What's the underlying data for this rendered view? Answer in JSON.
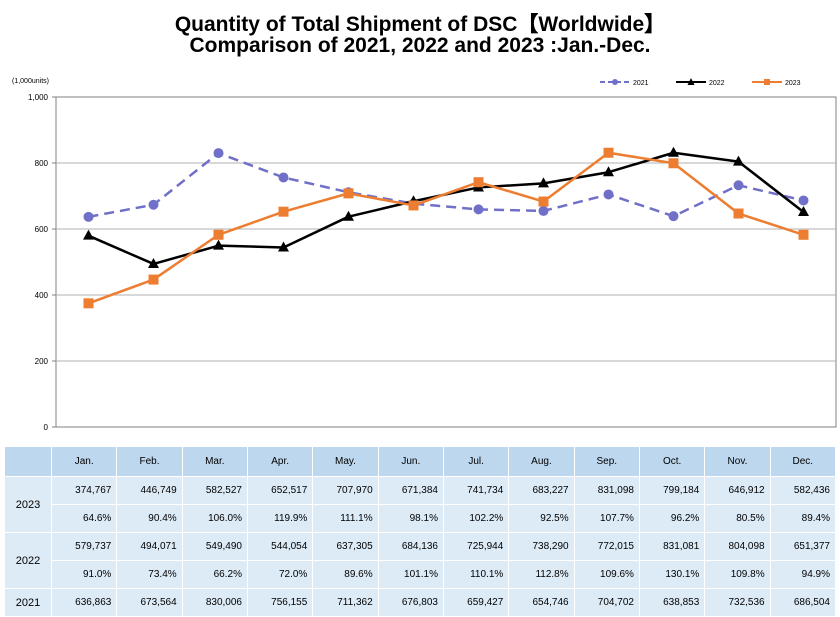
{
  "title_line1": "Quantity of Total Shipment of DSC【Worldwide】",
  "title_line2": "Comparison of 2021, 2022 and 2023 :Jan.-Dec.",
  "chart_data": {
    "type": "line",
    "unit_label": "(1,000units)",
    "categories": [
      "Jan.",
      "Feb.",
      "Mar.",
      "Apr.",
      "May.",
      "Jun.",
      "Jul.",
      "Aug.",
      "Sep.",
      "Oct.",
      "Nov.",
      "Dec."
    ],
    "ylim": [
      0,
      1000
    ],
    "yticks": [
      "0",
      "200",
      "400",
      "600",
      "800",
      "1,000"
    ],
    "ytick_values": [
      0,
      200,
      400,
      600,
      800,
      1000
    ],
    "grid": true,
    "legend_position": "top-right",
    "series": [
      {
        "name": "2021",
        "color": "#7070c8",
        "style": "dashed",
        "marker": "circle",
        "values": [
          636.863,
          673.564,
          830.006,
          756.155,
          711.362,
          676.803,
          659.427,
          654.746,
          704.702,
          638.853,
          732.536,
          686.504
        ]
      },
      {
        "name": "2022",
        "color": "#000000",
        "style": "solid",
        "marker": "triangle",
        "values": [
          579.737,
          494.071,
          549.49,
          544.054,
          637.305,
          684.136,
          725.944,
          738.29,
          772.015,
          831.081,
          804.098,
          651.377
        ]
      },
      {
        "name": "2023",
        "color": "#ed7d31",
        "style": "solid",
        "marker": "square",
        "values": [
          374.767,
          446.749,
          582.527,
          652.517,
          707.97,
          671.384,
          741.734,
          683.227,
          831.098,
          799.184,
          646.912,
          582.436
        ]
      }
    ]
  },
  "table": {
    "months": [
      "Jan.",
      "Feb.",
      "Mar.",
      "Apr.",
      "May.",
      "Jun.",
      "Jul.",
      "Aug.",
      "Sep.",
      "Oct.",
      "Nov.",
      "Dec."
    ],
    "rows": [
      {
        "year": "2023",
        "units": [
          "374,767",
          "446,749",
          "582,527",
          "652,517",
          "707,970",
          "671,384",
          "741,734",
          "683,227",
          "831,098",
          "799,184",
          "646,912",
          "582,436"
        ],
        "pct": [
          "64.6%",
          "90.4%",
          "106.0%",
          "119.9%",
          "111.1%",
          "98.1%",
          "102.2%",
          "92.5%",
          "107.7%",
          "96.2%",
          "80.5%",
          "89.4%"
        ]
      },
      {
        "year": "2022",
        "units": [
          "579,737",
          "494,071",
          "549,490",
          "544,054",
          "637,305",
          "684,136",
          "725,944",
          "738,290",
          "772,015",
          "831,081",
          "804,098",
          "651,377"
        ],
        "pct": [
          "91.0%",
          "73.4%",
          "66.2%",
          "72.0%",
          "89.6%",
          "101.1%",
          "110.1%",
          "112.8%",
          "109.6%",
          "130.1%",
          "109.8%",
          "94.9%"
        ]
      },
      {
        "year": "2021",
        "units": [
          "636,863",
          "673,564",
          "830,006",
          "756,155",
          "711,362",
          "676,803",
          "659,427",
          "654,746",
          "704,702",
          "638,853",
          "732,536",
          "686,504"
        ]
      }
    ]
  }
}
